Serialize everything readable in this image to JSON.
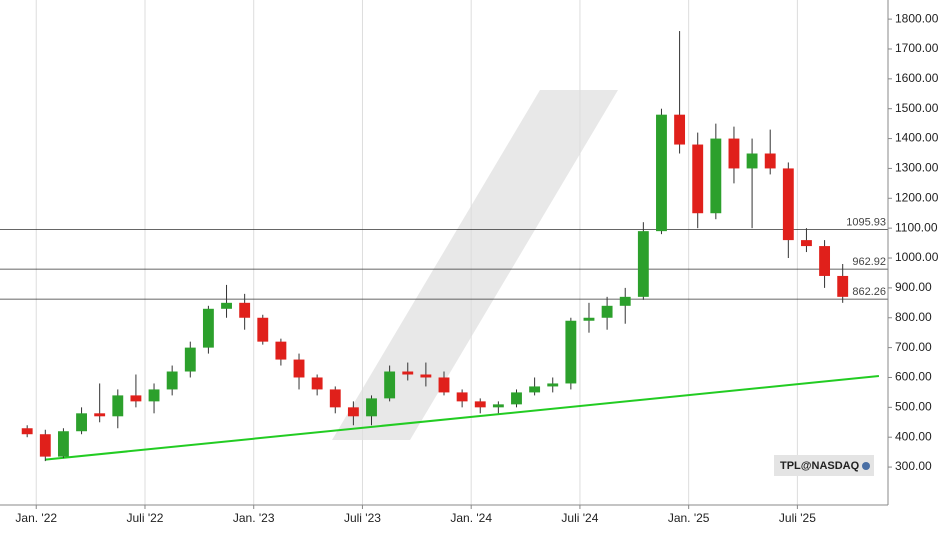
{
  "chart_data": {
    "type": "candlestick",
    "badge": "TPL@NASDAQ",
    "up_color": "#2ca02c",
    "down_color": "#e0201b",
    "x": [
      "2021-12",
      "2022-01",
      "2022-02",
      "2022-03",
      "2022-04",
      "2022-05",
      "2022-06",
      "2022-07",
      "2022-08",
      "2022-09",
      "2022-10",
      "2022-11",
      "2022-12",
      "2023-01",
      "2023-02",
      "2023-03",
      "2023-04",
      "2023-05",
      "2023-06",
      "2023-07",
      "2023-08",
      "2023-09",
      "2023-10",
      "2023-11",
      "2023-12",
      "2024-01",
      "2024-02",
      "2024-03",
      "2024-04",
      "2024-05",
      "2024-06",
      "2024-07",
      "2024-08",
      "2024-09",
      "2024-10",
      "2024-11",
      "2024-12",
      "2025-01",
      "2025-02",
      "2025-03",
      "2025-04",
      "2025-05",
      "2025-06",
      "2025-07",
      "2025-08",
      "2025-09"
    ],
    "open": [
      430,
      410,
      335,
      420,
      480,
      470,
      540,
      520,
      560,
      620,
      700,
      830,
      850,
      800,
      720,
      660,
      600,
      560,
      500,
      470,
      530,
      620,
      610,
      600,
      550,
      520,
      500,
      510,
      550,
      570,
      580,
      790,
      800,
      840,
      870,
      1090,
      1480,
      1380,
      1150,
      1400,
      1300,
      1350,
      1300,
      1060,
      1040,
      940
    ],
    "high": [
      440,
      425,
      430,
      500,
      580,
      560,
      610,
      580,
      640,
      720,
      840,
      910,
      880,
      810,
      730,
      680,
      610,
      570,
      520,
      540,
      640,
      650,
      650,
      620,
      560,
      530,
      520,
      560,
      600,
      600,
      800,
      850,
      870,
      900,
      1120,
      1500,
      1760,
      1420,
      1450,
      1440,
      1400,
      1430,
      1320,
      1100,
      1060,
      980
    ],
    "low": [
      400,
      320,
      330,
      410,
      450,
      430,
      500,
      480,
      540,
      600,
      680,
      800,
      760,
      710,
      640,
      560,
      540,
      480,
      440,
      440,
      520,
      590,
      570,
      540,
      500,
      480,
      480,
      500,
      540,
      550,
      560,
      750,
      760,
      780,
      860,
      1080,
      1350,
      1100,
      1130,
      1250,
      1100,
      1280,
      1000,
      1020,
      900,
      850
    ],
    "close": [
      410,
      335,
      420,
      480,
      470,
      540,
      520,
      560,
      620,
      700,
      830,
      850,
      800,
      720,
      660,
      600,
      560,
      500,
      470,
      530,
      620,
      610,
      600,
      550,
      520,
      500,
      510,
      550,
      570,
      580,
      790,
      800,
      840,
      870,
      1090,
      1480,
      1380,
      1150,
      1400,
      1300,
      1350,
      1300,
      1060,
      1040,
      940,
      870
    ],
    "xlim": [
      "2021-11",
      "2025-12"
    ],
    "xticks": [
      {
        "value": "2022-01",
        "label": "Jan. '22"
      },
      {
        "value": "2022-07",
        "label": "Juli '22"
      },
      {
        "value": "2023-01",
        "label": "Jan. '23"
      },
      {
        "value": "2023-07",
        "label": "Juli '23"
      },
      {
        "value": "2024-01",
        "label": "Jan. '24"
      },
      {
        "value": "2024-07",
        "label": "Juli '24"
      },
      {
        "value": "2025-01",
        "label": "Jan. '25"
      },
      {
        "value": "2025-07",
        "label": "Juli '25"
      }
    ],
    "ylim": [
      173,
      1864
    ],
    "yticks": [
      {
        "value": 300,
        "label": "300.00"
      },
      {
        "value": 400,
        "label": "400.00"
      },
      {
        "value": 500,
        "label": "500.00"
      },
      {
        "value": 600,
        "label": "600.00"
      },
      {
        "value": 700,
        "label": "700.00"
      },
      {
        "value": 800,
        "label": "800.00"
      },
      {
        "value": 900,
        "label": "900.00"
      },
      {
        "value": 1000,
        "label": "1000.00"
      },
      {
        "value": 1100,
        "label": "1100.00"
      },
      {
        "value": 1200,
        "label": "1200.00"
      },
      {
        "value": 1300,
        "label": "1300.00"
      },
      {
        "value": 1400,
        "label": "1400.00"
      },
      {
        "value": 1500,
        "label": "1500.00"
      },
      {
        "value": 1600,
        "label": "1600.00"
      },
      {
        "value": 1700,
        "label": "1700.00"
      },
      {
        "value": 1800,
        "label": "1800.00"
      }
    ],
    "levels": [
      1095.93,
      962.92,
      862.26
    ],
    "trendline": {
      "color": "#22cc22",
      "x": [
        "2022-01",
        "2025-11"
      ],
      "y": [
        325,
        605
      ]
    },
    "grid": true
  }
}
